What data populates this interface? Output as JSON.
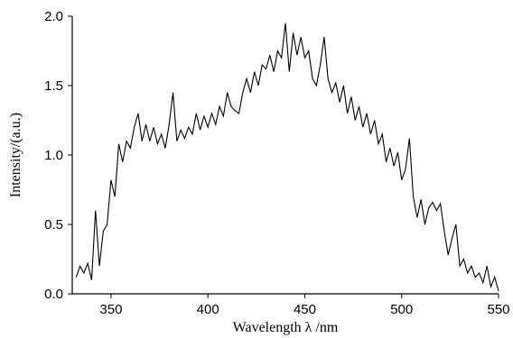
{
  "chart_data": {
    "type": "line",
    "xlabel": "Wavelength λ /nm",
    "ylabel": "Intensity/(a.u.)",
    "xlim": [
      330,
      550
    ],
    "xticks": [
      350,
      400,
      450,
      500,
      550
    ],
    "ylim": [
      0,
      2
    ],
    "yticks": [
      {
        "value": 0,
        "label": "0.0"
      },
      0.5,
      {
        "value": 1,
        "label": "1.0"
      },
      1.5,
      {
        "value": 2,
        "label": "2.0"
      }
    ],
    "grid": false,
    "series": [
      {
        "color": "#000000",
        "x": [
          332,
          334,
          336,
          338,
          340,
          342,
          344,
          346,
          348,
          350,
          352,
          354,
          356,
          358,
          360,
          362,
          364,
          366,
          368,
          370,
          372,
          374,
          376,
          378,
          380,
          382,
          384,
          386,
          388,
          390,
          392,
          394,
          396,
          398,
          400,
          402,
          404,
          406,
          408,
          410,
          412,
          414,
          416,
          418,
          420,
          422,
          424,
          426,
          428,
          430,
          432,
          434,
          436,
          438,
          440,
          442,
          444,
          446,
          448,
          450,
          452,
          454,
          456,
          458,
          460,
          462,
          464,
          466,
          468,
          470,
          472,
          474,
          476,
          478,
          480,
          482,
          484,
          486,
          488,
          490,
          492,
          494,
          496,
          498,
          500,
          502,
          504,
          506,
          508,
          510,
          512,
          514,
          516,
          518,
          520,
          522,
          524,
          526,
          528,
          530,
          532,
          534,
          536,
          538,
          540,
          542,
          544,
          546,
          548,
          550
        ],
        "values": [
          0.12,
          0.2,
          0.15,
          0.22,
          0.1,
          0.6,
          0.2,
          0.45,
          0.5,
          0.82,
          0.7,
          1.08,
          0.95,
          1.1,
          1.05,
          1.2,
          1.3,
          1.1,
          1.22,
          1.1,
          1.2,
          1.08,
          1.15,
          1.05,
          1.22,
          1.45,
          1.1,
          1.18,
          1.12,
          1.2,
          1.15,
          1.3,
          1.18,
          1.28,
          1.2,
          1.3,
          1.22,
          1.35,
          1.28,
          1.45,
          1.35,
          1.32,
          1.3,
          1.45,
          1.55,
          1.45,
          1.6,
          1.5,
          1.65,
          1.62,
          1.72,
          1.6,
          1.75,
          1.7,
          1.95,
          1.6,
          1.88,
          1.72,
          1.85,
          1.7,
          1.75,
          1.55,
          1.5,
          1.65,
          1.85,
          1.55,
          1.45,
          1.52,
          1.38,
          1.5,
          1.3,
          1.42,
          1.25,
          1.35,
          1.2,
          1.3,
          1.15,
          1.25,
          1.08,
          1.15,
          0.95,
          1.05,
          0.92,
          1.02,
          0.82,
          0.9,
          1.12,
          0.7,
          0.55,
          0.68,
          0.5,
          0.62,
          0.66,
          0.6,
          0.65,
          0.45,
          0.28,
          0.4,
          0.5,
          0.2,
          0.25,
          0.15,
          0.2,
          0.12,
          0.15,
          0.08,
          0.2,
          0.05,
          0.12,
          0.02
        ]
      }
    ]
  }
}
